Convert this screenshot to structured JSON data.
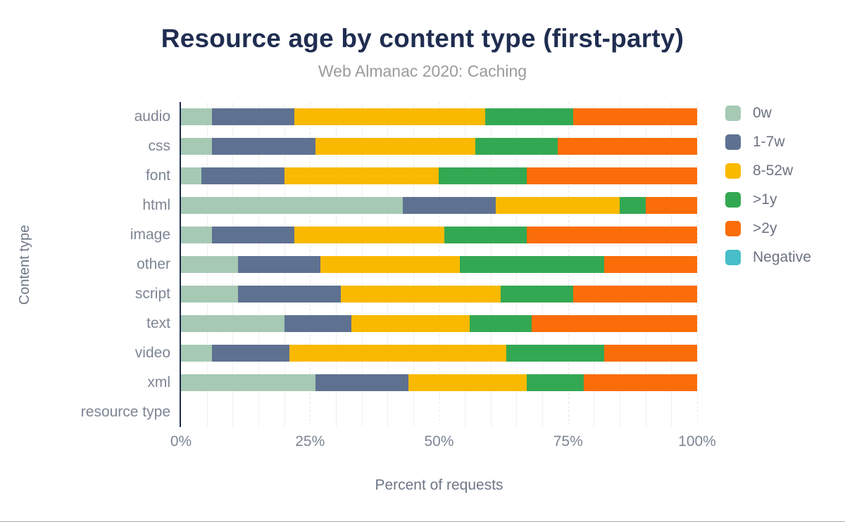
{
  "header": {
    "title": "Resource age by content type (first-party)",
    "subtitle": "Web Almanac 2020: Caching"
  },
  "colors": {
    "title_text": "#1f2d50",
    "subtitle_text": "#9b9b9b",
    "axis_line": "#1b2b4b",
    "tick_text": "#7c8594",
    "legend_text": "#6b7280"
  },
  "chart_data": {
    "type": "bar",
    "orientation": "horizontal",
    "stacked": true,
    "title": "Resource age by content type (first-party)",
    "subtitle": "Web Almanac 2020: Caching",
    "xlabel": "Percent of requests",
    "ylabel": "Content type",
    "xlim": [
      0,
      100
    ],
    "xtick_labels": [
      "0%",
      "25%",
      "50%",
      "75%",
      "100%"
    ],
    "xtick_values": [
      0,
      25,
      50,
      75,
      100
    ],
    "grid": "vertical minor every 5%, dotted major at quarters",
    "legend_position": "right",
    "categories": [
      "audio",
      "css",
      "font",
      "html",
      "image",
      "other",
      "script",
      "text",
      "video",
      "xml",
      "resource type"
    ],
    "series": [
      {
        "name": "0w",
        "color": "#a6c9b4",
        "values": [
          6,
          6,
          4,
          43,
          6,
          11,
          11,
          20,
          6,
          26,
          0
        ]
      },
      {
        "name": "1-7w",
        "color": "#5e7191",
        "values": [
          16,
          20,
          16,
          18,
          16,
          16,
          20,
          13,
          15,
          18,
          0
        ]
      },
      {
        "name": "8-52w",
        "color": "#f9b900",
        "values": [
          37,
          31,
          30,
          24,
          29,
          27,
          31,
          23,
          42,
          23,
          0
        ]
      },
      {
        "name": ">1y",
        "color": "#33a852",
        "values": [
          17,
          16,
          17,
          5,
          16,
          28,
          14,
          12,
          19,
          11,
          0
        ]
      },
      {
        "name": ">2y",
        "color": "#fb6d09",
        "values": [
          24,
          27,
          33,
          10,
          33,
          18,
          24,
          32,
          18,
          22,
          0
        ]
      },
      {
        "name": "Negative",
        "color": "#47bec9",
        "values": [
          0,
          0,
          0,
          0,
          0,
          0,
          0,
          0,
          0,
          0,
          0
        ]
      }
    ]
  }
}
